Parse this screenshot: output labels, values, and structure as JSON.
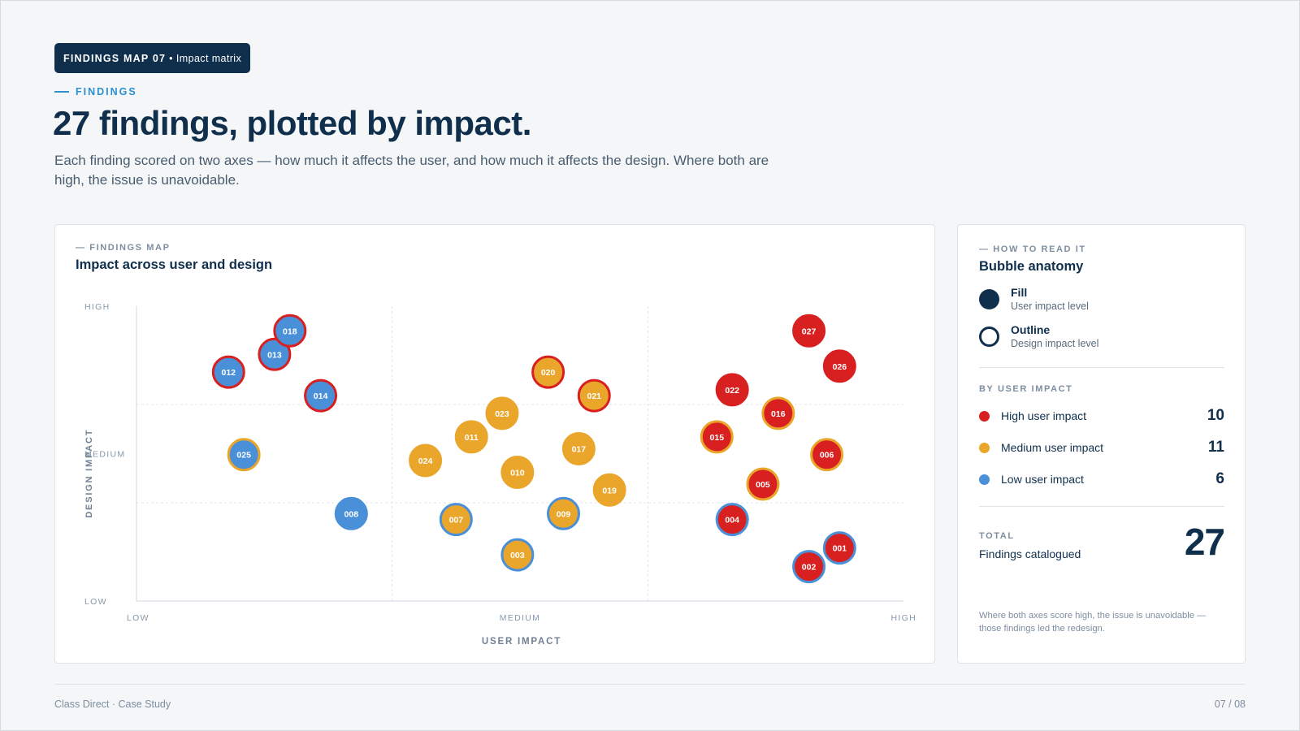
{
  "header": {
    "tag_strong": "FINDINGS MAP 07",
    "tag_sep": "•",
    "tag_rest": "Impact matrix",
    "eyebrow": "FINDINGS",
    "headline": "27 findings, plotted by impact.",
    "subline": "Each finding scored on two axes — how much it affects the user, and how much it affects the design. Where both are high, the issue is unavoidable."
  },
  "chart_card": {
    "eyebrow": "— FINDINGS MAP",
    "title": "Impact across user and design"
  },
  "colors": {
    "high": "#d7201f",
    "medium": "#eaa52b",
    "low": "#4a90d9",
    "navy": "#0f2f4d"
  },
  "chart_data": {
    "type": "scatter",
    "title": "Impact across user and design",
    "xlabel": "USER IMPACT",
    "ylabel": "DESIGN IMPACT",
    "xlim": [
      0,
      3
    ],
    "ylim": [
      0,
      3
    ],
    "x_ticks": [
      {
        "value": 0,
        "label": "LOW"
      },
      {
        "value": 1.5,
        "label": "MEDIUM"
      },
      {
        "value": 3,
        "label": "HIGH"
      }
    ],
    "y_ticks": [
      {
        "value": 0,
        "label": "LOW"
      },
      {
        "value": 1.5,
        "label": "MEDIUM"
      },
      {
        "value": 3,
        "label": "HIGH"
      }
    ],
    "grid": true,
    "encoding": {
      "fill": "user_impact",
      "outline": "design_impact"
    },
    "points": [
      {
        "id": "001",
        "x": 2.75,
        "y": 0.54,
        "fill": "high",
        "outline": "low"
      },
      {
        "id": "002",
        "x": 2.63,
        "y": 0.35,
        "fill": "high",
        "outline": "low"
      },
      {
        "id": "003",
        "x": 1.49,
        "y": 0.47,
        "fill": "medium",
        "outline": "low"
      },
      {
        "id": "004",
        "x": 2.33,
        "y": 0.83,
        "fill": "high",
        "outline": "low"
      },
      {
        "id": "005",
        "x": 2.45,
        "y": 1.19,
        "fill": "high",
        "outline": "medium"
      },
      {
        "id": "006",
        "x": 2.7,
        "y": 1.49,
        "fill": "high",
        "outline": "medium"
      },
      {
        "id": "007",
        "x": 1.25,
        "y": 0.83,
        "fill": "medium",
        "outline": "low"
      },
      {
        "id": "008",
        "x": 0.84,
        "y": 0.89,
        "fill": "low",
        "outline": "low"
      },
      {
        "id": "009",
        "x": 1.67,
        "y": 0.89,
        "fill": "medium",
        "outline": "low"
      },
      {
        "id": "010",
        "x": 1.49,
        "y": 1.31,
        "fill": "medium",
        "outline": "medium"
      },
      {
        "id": "011",
        "x": 1.31,
        "y": 1.67,
        "fill": "medium",
        "outline": "medium"
      },
      {
        "id": "012",
        "x": 0.36,
        "y": 2.33,
        "fill": "low",
        "outline": "high"
      },
      {
        "id": "013",
        "x": 0.54,
        "y": 2.51,
        "fill": "low",
        "outline": "high"
      },
      {
        "id": "014",
        "x": 0.72,
        "y": 2.09,
        "fill": "low",
        "outline": "high"
      },
      {
        "id": "015",
        "x": 2.27,
        "y": 1.67,
        "fill": "high",
        "outline": "medium"
      },
      {
        "id": "016",
        "x": 2.51,
        "y": 1.91,
        "fill": "high",
        "outline": "medium"
      },
      {
        "id": "017",
        "x": 1.73,
        "y": 1.55,
        "fill": "medium",
        "outline": "medium"
      },
      {
        "id": "018",
        "x": 0.6,
        "y": 2.75,
        "fill": "low",
        "outline": "high"
      },
      {
        "id": "019",
        "x": 1.85,
        "y": 1.13,
        "fill": "medium",
        "outline": "medium"
      },
      {
        "id": "020",
        "x": 1.61,
        "y": 2.33,
        "fill": "medium",
        "outline": "high"
      },
      {
        "id": "021",
        "x": 1.79,
        "y": 2.09,
        "fill": "medium",
        "outline": "high"
      },
      {
        "id": "022",
        "x": 2.33,
        "y": 2.15,
        "fill": "high",
        "outline": "high"
      },
      {
        "id": "023",
        "x": 1.43,
        "y": 1.91,
        "fill": "medium",
        "outline": "medium"
      },
      {
        "id": "024",
        "x": 1.13,
        "y": 1.43,
        "fill": "medium",
        "outline": "medium"
      },
      {
        "id": "025",
        "x": 0.42,
        "y": 1.49,
        "fill": "low",
        "outline": "medium"
      },
      {
        "id": "026",
        "x": 2.75,
        "y": 2.39,
        "fill": "high",
        "outline": "high"
      },
      {
        "id": "027",
        "x": 2.63,
        "y": 2.75,
        "fill": "high",
        "outline": "high"
      }
    ]
  },
  "side": {
    "eyebrow": "— HOW TO READ IT",
    "title": "Bubble anatomy",
    "fill_label": "Fill",
    "fill_sub": "User impact level",
    "outline_label": "Outline",
    "outline_sub": "Design impact level",
    "by_eyebrow": "BY USER IMPACT",
    "legend": [
      {
        "label": "High user impact",
        "count": "10",
        "color": "#d7201f"
      },
      {
        "label": "Medium user impact",
        "count": "11",
        "color": "#eaa52b"
      },
      {
        "label": "Low user impact",
        "count": "6",
        "color": "#4a90d9"
      }
    ],
    "total_eyebrow": "TOTAL",
    "total_label": "Findings catalogued",
    "total_count": "27",
    "note": "Where both axes score high, the issue is unavoidable — those findings led the redesign."
  },
  "footer": {
    "left": "Class Direct · Case Study",
    "right": "07 / 08"
  }
}
